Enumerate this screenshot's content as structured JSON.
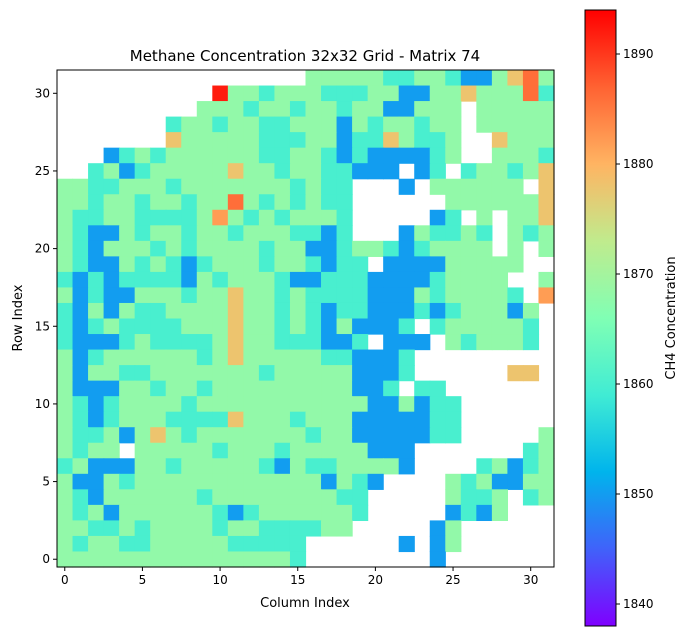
{
  "chart_data": {
    "type": "heatmap",
    "title": "Methane Concentration 32x32 Grid - Matrix 74",
    "xlabel": "Column Index",
    "ylabel": "Row Index",
    "colorbar_label": "CH4 Concentration",
    "colormap": "rainbow",
    "xlim": [
      -0.5,
      31.5
    ],
    "ylim": [
      -0.5,
      31.5
    ],
    "vmin": 1838,
    "vmax": 1894,
    "x_ticks": [
      0,
      5,
      10,
      15,
      20,
      25,
      30
    ],
    "y_ticks": [
      0,
      5,
      10,
      15,
      20,
      25,
      30
    ],
    "colorbar_ticks": [
      1840,
      1850,
      1860,
      1870,
      1880,
      1890
    ],
    "rows": 32,
    "cols": 32,
    "row_order": "row index 31 first (top) down to row index 0 (bottom)",
    "values": [
      "________________nnnnnggnngbbnyrn",
      "__________Rnngnnngggnnbbnnynnnrg",
      "_________nnngnngnngnnbbnnn_nnnnn",
      "_______gnngnnggnnnbngnngnn_nnnnn",
      "_______ynnnnngggnnbggynggn__ynnn",
      "___bgngnnnnnnggnngbgbbbbgn__nnng",
      "__gnbgnnnnnynngnnggbbb_bg_gnngny",
      "nnggnnngnnnnnnngngg___b_nnnnnn_y",
      "nngnngnngnnrngngngg______nnnnnny",
      "nggnnggggnongngnnng_____bg_n_nny",
      "ngbbngnngnngnnnggbg___bnggng_ngn",
      "ngbnnngngnnnngnnbbgnngbgnnnn_n_n",
      "ngbbngngbgnnngnngbgg_bbbbnnnnn__",
      "gbgbggggbngnnngbbgggbbbbgnnnn__n",
      "nbgbbnnngnnynngnggggbbbngnnnng_o",
      "gbnbnggnnnnynngngbggbbbgbgnnnbn_",
      "gbgnggggnnnynngngbnbbbg_gnnnnng_",
      "gbbbgnggggnynngggbbg_bbb_ngnnng_",
      "nbgnnnnnngnynnnnnggbbbg_________",
      "nbnnggnnnnnnngnnnnnbbbg______yy_",
      "nbbbnngnngnnnnnnnnnbbg_gg_______",
      "ngbgnnnngnnnnnnnnnnnbbnbgg______",
      "ngbgnnnggggynnngnnnbbbbbgg______",
      "nggnbnyngnnnnnnngnnbbbbbgg_____n",
      "ngnn_nnnnngnnngnnnnnbbb_______gn",
      "gnbbbnngnnnnngbnggnnnnb____gnbgn",
      "nbbngnnnnnnnnnnnnbngb____ngnbbnn",
      "ngbnnnnnngnnnnnnnngg_____nggn_gn",
      "ngnbnnnnnngbgnnnnnng_____bgbn___",
      "nnggngnnnngnnggggnn_____bn______",
      "ngnnggnnnnnggggg______b_bn______",
      "nnnnnnnnnnnnnnng________b_______"
    ],
    "values_encoding": "one character per cell, column index 0 first: _ no data (blank), b blue ~1850, g cyan ~1860, n light green ~1868, y yellow-orange ~1878, o orange ~1882, r orange-red ~1886, R red ~1892"
  }
}
